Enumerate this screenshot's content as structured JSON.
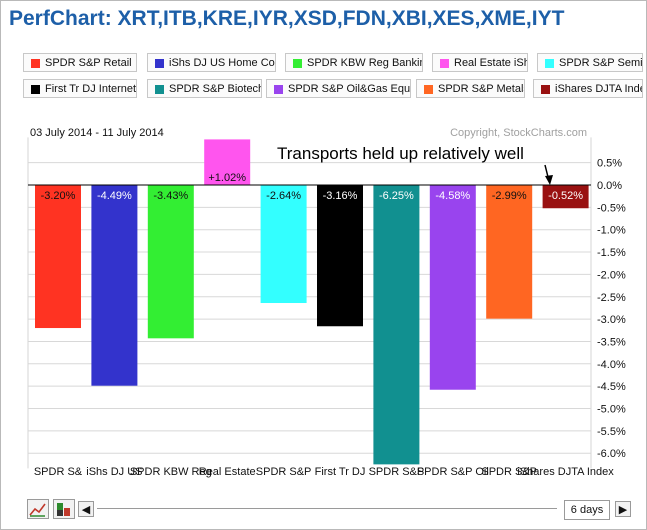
{
  "header": {
    "title": "PerfChart: XRT,ITB,KRE,IYR,XSD,FDN,XBI,XES,XME,IYT"
  },
  "legend": [
    {
      "label": "SPDR S&P Retail",
      "color": "#ff3322"
    },
    {
      "label": "iShs DJ US Home Cons",
      "color": "#3333cc"
    },
    {
      "label": "SPDR KBW Reg Banking",
      "color": "#33ee33"
    },
    {
      "label": "Real Estate iShr",
      "color": "#ff55ee"
    },
    {
      "label": "SPDR S&P Semi",
      "color": "#33ffff"
    },
    {
      "label": "First Tr DJ Internet",
      "color": "#000000"
    },
    {
      "label": "SPDR S&P Biotech",
      "color": "#119090"
    },
    {
      "label": "SPDR S&P Oil&Gas Equ",
      "color": "#9944ee"
    },
    {
      "label": "SPDR S&P Metals",
      "color": "#ff6622"
    },
    {
      "label": "iShares DJTA Index",
      "color": "#991111"
    }
  ],
  "chart_data": {
    "type": "bar",
    "date_range": "03 July 2014 - 11 July 2014",
    "copyright": "Copyright, StockCharts.com",
    "annotation": "Transports held up relatively well",
    "categories": [
      "SPDR S&P Retail",
      "iShs DJ US Home Cons",
      "SPDR KBW Reg Banking",
      "Real Estate iShr",
      "SPDR S&P Semi",
      "First Tr DJ Internet",
      "SPDR S&P Biotech",
      "SPDR S&P Oil&Gas Equ",
      "SPDR S&P Metals",
      "iShares DJTA Index"
    ],
    "x_labels": [
      "SPDR S&",
      "iShs DJ US",
      "SPDR KBW Reg",
      "Real Estate",
      "SPDR S&P",
      "First Tr DJ",
      "SPDR S&P",
      "SPDR S&P Oil",
      "SPDR S&P",
      "iShares DJTA Index"
    ],
    "values": [
      -3.2,
      -4.49,
      -3.43,
      1.02,
      -2.64,
      -3.16,
      -6.25,
      -4.58,
      -2.99,
      -0.52
    ],
    "value_labels": [
      "-3.20%",
      "-4.49%",
      "-3.43%",
      "+1.02%",
      "-2.64%",
      "-3.16%",
      "-6.25%",
      "-4.58%",
      "-2.99%",
      "-0.52%"
    ],
    "colors": [
      "#ff3322",
      "#3333cc",
      "#33ee33",
      "#ff55ee",
      "#33ffff",
      "#000000",
      "#119090",
      "#9944ee",
      "#ff6622",
      "#991111"
    ],
    "ylim": [
      -6.25,
      1.02
    ],
    "yticks": [
      0.5,
      0.0,
      -0.5,
      -1.0,
      -1.5,
      -2.0,
      -2.5,
      -3.0,
      -3.5,
      -4.0,
      -4.5,
      -5.0,
      -5.5,
      -6.0
    ],
    "ytick_labels": [
      "0.5%",
      "0.0%",
      "-0.5%",
      "-1.0%",
      "-1.5%",
      "-2.0%",
      "-2.5%",
      "-3.0%",
      "-3.5%",
      "-4.0%",
      "-4.5%",
      "-5.0%",
      "-5.5%",
      "-6.0%"
    ],
    "grid": true,
    "ylabel_position": "right"
  },
  "controls": {
    "period": "6 days"
  }
}
